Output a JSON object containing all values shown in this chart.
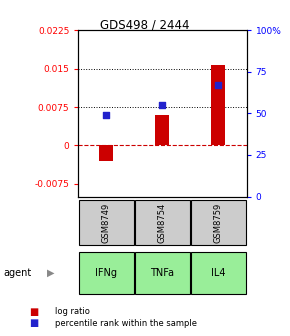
{
  "title": "GDS498 / 2444",
  "samples": [
    "GSM8749",
    "GSM8754",
    "GSM8759"
  ],
  "agents": [
    "IFNg",
    "TNFa",
    "IL4"
  ],
  "log_ratios": [
    -0.003,
    0.006,
    0.0158
  ],
  "percentile_ranks": [
    49,
    55,
    67
  ],
  "left_ylim": [
    -0.01,
    0.0225
  ],
  "right_ylim": [
    0,
    100
  ],
  "left_yticks": [
    -0.0075,
    0,
    0.0075,
    0.015,
    0.0225
  ],
  "right_yticks": [
    0,
    25,
    50,
    75,
    100
  ],
  "right_yticklabels": [
    "0",
    "25",
    "50",
    "75",
    "100%"
  ],
  "hline_dotted": [
    0.0075,
    0.015
  ],
  "hline_dashed_zero": 0,
  "bar_color": "#cc0000",
  "dot_color": "#2222cc",
  "sample_bg_color": "#cccccc",
  "agent_bg_color": "#99ee99",
  "legend_log_ratio": "log ratio",
  "legend_percentile": "percentile rank within the sample"
}
